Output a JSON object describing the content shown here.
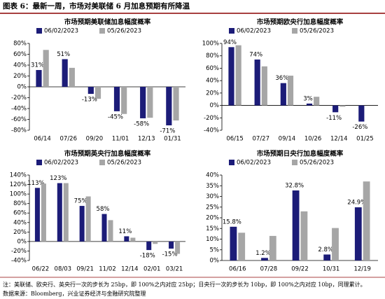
{
  "header": {
    "title": "图表 6：最新一周，市场对美联储 6 月加息预期有所降温"
  },
  "notes": [
    "注：美联储、欧央行、英央行一次的步长为 25bp，即 100%之内对应 25bp；日央行一次的步长为 10bp，即 100%之内对应 10bp，同理累计。",
    "数据来源：Bloomberg，兴业证券经济与金融研究院整理"
  ],
  "chart_data": [
    {
      "type": "bar",
      "title": "市场预期美联储加息幅度概率",
      "categories": [
        "06/14",
        "07/26",
        "09/20",
        "11/01",
        "12/13",
        "01/31"
      ],
      "series": [
        {
          "name": "06/02/2023",
          "color": "#1c1c78",
          "values": [
            31,
            51,
            -13,
            -45,
            -58,
            -71
          ],
          "value_labels": [
            "31%",
            "51%",
            "-13%",
            "-45%",
            "-58%",
            "-71%"
          ]
        },
        {
          "name": "05/26/2023",
          "color": "#a6a6a6",
          "values": [
            68,
            35,
            -22,
            -50,
            -57,
            -62
          ]
        }
      ],
      "ylim": [
        -80,
        80
      ],
      "yticks": [
        {
          "value": -80,
          "label": "-80%"
        },
        {
          "value": -60,
          "label": "-60%"
        },
        {
          "value": -40,
          "label": "-40%"
        },
        {
          "value": -20,
          "label": "-20%"
        },
        {
          "value": 0,
          "label": "0%"
        },
        {
          "value": 20,
          "label": "20%"
        },
        {
          "value": 40,
          "label": "40%"
        },
        {
          "value": 60,
          "label": "60%"
        },
        {
          "value": 80,
          "label": "80%"
        }
      ]
    },
    {
      "type": "bar",
      "title": "市场预期欧央行加息幅度概率",
      "categories": [
        "06/15",
        "07/27",
        "09/14",
        "10/26",
        "12/14",
        "01/25"
      ],
      "series": [
        {
          "name": "06/02/2023",
          "color": "#1c1c78",
          "values": [
            94,
            74,
            36,
            3,
            -11,
            -26
          ],
          "value_labels": [
            "94%",
            "74%",
            "36%",
            "3%",
            "-11%",
            "-26%"
          ]
        },
        {
          "name": "05/26/2023",
          "color": "#a6a6a6",
          "values": [
            97,
            63,
            48,
            14,
            -2,
            0
          ]
        }
      ],
      "ylim": [
        -40,
        100
      ],
      "yticks": [
        {
          "value": -40,
          "label": "-40%"
        },
        {
          "value": -20,
          "label": "-20%"
        },
        {
          "value": 0,
          "label": "0%"
        },
        {
          "value": 20,
          "label": "20%"
        },
        {
          "value": 40,
          "label": "40%"
        },
        {
          "value": 60,
          "label": "60%"
        },
        {
          "value": 80,
          "label": "80%"
        },
        {
          "value": 100,
          "label": "100%"
        }
      ]
    },
    {
      "type": "bar",
      "title": "市场预期英央行加息幅度概率",
      "categories": [
        "06/22",
        "08/03",
        "09/21",
        "11/02",
        "12/14",
        "02/01",
        "03/21"
      ],
      "series": [
        {
          "name": "06/02/2023",
          "color": "#1c1c78",
          "values": [
            113,
            123,
            75,
            58,
            11,
            -18,
            -15
          ],
          "value_labels": [
            "113%",
            "123%",
            "75%",
            "58%",
            "11%",
            "-18%",
            "-15%"
          ]
        },
        {
          "name": "05/26/2023",
          "color": "#a6a6a6",
          "values": [
            122,
            123,
            95,
            45,
            8,
            -5,
            -26
          ]
        }
      ],
      "ylim": [
        -40,
        140
      ],
      "yticks": [
        {
          "value": -40,
          "label": "-40%"
        },
        {
          "value": -20,
          "label": "-20%"
        },
        {
          "value": 0,
          "label": "0%"
        },
        {
          "value": 20,
          "label": "20%"
        },
        {
          "value": 40,
          "label": "40%"
        },
        {
          "value": 60,
          "label": "60%"
        },
        {
          "value": 80,
          "label": "80%"
        },
        {
          "value": 100,
          "label": "100%"
        },
        {
          "value": 120,
          "label": "120%"
        },
        {
          "value": 140,
          "label": "140%"
        }
      ]
    },
    {
      "type": "bar",
      "title": "市场预期日央行加息幅度概率",
      "categories": [
        "06/16",
        "07/28",
        "09/22",
        "10/31",
        "12/19"
      ],
      "series": [
        {
          "name": "06/02/2023",
          "color": "#1c1c78",
          "values": [
            15.8,
            1.2,
            32.8,
            2.8,
            24.9
          ],
          "value_labels": [
            "15.8%",
            "1.2%",
            "32.8%",
            "2.8%",
            "24.9%"
          ]
        },
        {
          "name": "05/26/2023",
          "color": "#a6a6a6",
          "values": [
            13,
            11.5,
            23,
            15.2,
            37
          ]
        }
      ],
      "ylim": [
        0,
        40
      ],
      "yticks": [
        {
          "value": 0,
          "label": "0%"
        },
        {
          "value": 5,
          "label": "5%"
        },
        {
          "value": 10,
          "label": "10%"
        },
        {
          "value": 15,
          "label": "15%"
        },
        {
          "value": 20,
          "label": "20%"
        },
        {
          "value": 25,
          "label": "25%"
        },
        {
          "value": 30,
          "label": "30%"
        },
        {
          "value": 35,
          "label": "35%"
        },
        {
          "value": 40,
          "label": "40%"
        }
      ]
    }
  ]
}
